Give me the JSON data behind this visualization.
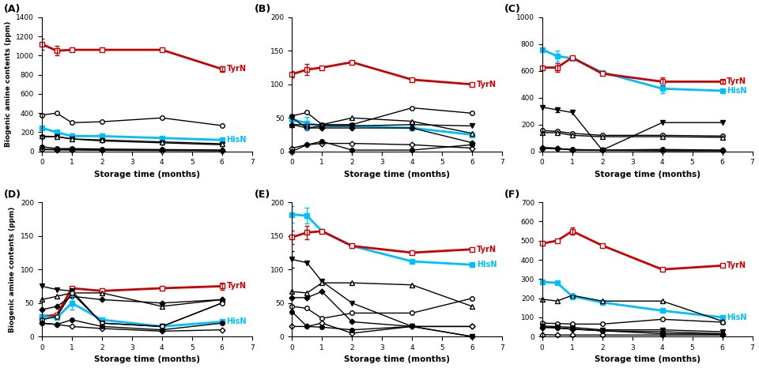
{
  "x_label": "Storage time (months)",
  "y_label": "Biogenic amine contents (ppm)",
  "panel_keys": [
    "A",
    "B",
    "C",
    "D",
    "E",
    "F"
  ],
  "panel_labels": [
    "(A)",
    "(B)",
    "(C)",
    "(D)",
    "(E)",
    "(F)"
  ],
  "label_colors": {
    "TyrN": "#CC0000",
    "HisN": "#00BFFF"
  },
  "panel_data": {
    "A": {
      "ylim": [
        0,
        1400
      ],
      "yticks": [
        0,
        200,
        400,
        600,
        800,
        1000,
        1200,
        1400
      ],
      "series": {
        "tyramine": {
          "x": [
            0,
            0.5,
            1,
            2,
            4,
            6
          ],
          "y": [
            1120,
            1050,
            1060,
            1060,
            1060,
            860
          ]
        },
        "histamine": {
          "x": [
            0,
            0.5,
            1,
            2,
            4,
            6
          ],
          "y": [
            245,
            200,
            160,
            160,
            140,
            120
          ]
        },
        "2-phenylethylamine": {
          "x": [
            0,
            0.5,
            1,
            2,
            4,
            6
          ],
          "y": [
            380,
            400,
            300,
            310,
            350,
            270
          ]
        },
        "putrescine": {
          "x": [
            0,
            0.5,
            1,
            2,
            4,
            6
          ],
          "y": [
            150,
            155,
            130,
            110,
            90,
            70
          ]
        },
        "cadaverine": {
          "x": [
            0,
            0.5,
            1,
            2,
            4,
            6
          ],
          "y": [
            160,
            155,
            130,
            120,
            100,
            80
          ]
        },
        "spermidine": {
          "x": [
            0,
            0.5,
            1,
            2,
            4,
            6
          ],
          "y": [
            25,
            20,
            20,
            15,
            15,
            10
          ]
        },
        "spermine": {
          "x": [
            0,
            0.5,
            1,
            2,
            4,
            6
          ],
          "y": [
            20,
            15,
            15,
            12,
            10,
            8
          ]
        },
        "tryptamine": {
          "x": [
            0,
            0.5,
            1,
            2,
            4,
            6
          ],
          "y": [
            50,
            30,
            30,
            25,
            20,
            15
          ]
        }
      },
      "label_pos": {
        "TyrN": [
          6.15,
          860
        ],
        "HisN": [
          6.15,
          120
        ]
      },
      "errorbars": {
        "tyramine": {
          "x": [
            0,
            0.5,
            6
          ],
          "yerr": [
            60,
            50,
            30
          ]
        },
        "histamine": {
          "x": [
            0
          ],
          "yerr": [
            25
          ]
        }
      }
    },
    "B": {
      "ylim": [
        0,
        200
      ],
      "yticks": [
        0,
        50,
        100,
        150,
        200
      ],
      "series": {
        "tyramine": {
          "x": [
            0,
            0.5,
            1,
            2,
            4,
            6
          ],
          "y": [
            115,
            122,
            125,
            133,
            107,
            100
          ]
        },
        "histamine": {
          "x": [
            0,
            0.5,
            1,
            2,
            4,
            6
          ],
          "y": [
            48,
            42,
            38,
            38,
            35,
            25
          ]
        },
        "2-phenylethylamine": {
          "x": [
            0,
            0.5,
            1,
            2,
            4,
            6
          ],
          "y": [
            53,
            58,
            40,
            40,
            65,
            57
          ]
        },
        "putrescine": {
          "x": [
            0,
            0.5,
            1,
            2,
            4,
            6
          ],
          "y": [
            50,
            35,
            38,
            38,
            40,
            38
          ]
        },
        "cadaverine": {
          "x": [
            0,
            0.5,
            1,
            2,
            4,
            6
          ],
          "y": [
            40,
            40,
            40,
            50,
            45,
            27
          ]
        },
        "spermidine": {
          "x": [
            0,
            0.5,
            1,
            2,
            4,
            6
          ],
          "y": [
            40,
            35,
            35,
            35,
            35,
            13
          ]
        },
        "spermine": {
          "x": [
            0,
            0.5,
            1,
            2,
            4,
            6
          ],
          "y": [
            5,
            10,
            12,
            12,
            10,
            5
          ]
        },
        "tryptamine": {
          "x": [
            0,
            0.5,
            1,
            2,
            4,
            6
          ],
          "y": [
            0,
            10,
            15,
            2,
            2,
            10
          ]
        }
      },
      "label_pos": {
        "TyrN": [
          6.15,
          100
        ]
      },
      "errorbars": {
        "tyramine": {
          "x": [
            0,
            0.5
          ],
          "yerr": [
            5,
            8
          ]
        },
        "histamine": {
          "x": [
            0.5
          ],
          "yerr": [
            10
          ]
        }
      }
    },
    "C": {
      "ylim": [
        0,
        1000
      ],
      "yticks": [
        0,
        200,
        400,
        600,
        800,
        1000
      ],
      "series": {
        "histamine": {
          "x": [
            0,
            0.5,
            1,
            2,
            4,
            6
          ],
          "y": [
            760,
            710,
            695,
            590,
            468,
            452
          ]
        },
        "tyramine": {
          "x": [
            0,
            0.5,
            1,
            2,
            4,
            6
          ],
          "y": [
            625,
            625,
            700,
            580,
            520,
            520
          ]
        },
        "putrescine": {
          "x": [
            0,
            0.5,
            1,
            2,
            4,
            6
          ],
          "y": [
            330,
            310,
            290,
            10,
            215,
            215
          ]
        },
        "2-phenylethylamine": {
          "x": [
            0,
            0.5,
            1,
            2,
            4,
            6
          ],
          "y": [
            155,
            150,
            135,
            120,
            120,
            115
          ]
        },
        "cadaverine": {
          "x": [
            0,
            0.5,
            1,
            2,
            4,
            6
          ],
          "y": [
            140,
            140,
            120,
            110,
            110,
            105
          ]
        },
        "spermidine": {
          "x": [
            0,
            0.5,
            1,
            2,
            4,
            6
          ],
          "y": [
            30,
            25,
            10,
            8,
            10,
            8
          ]
        },
        "spermine": {
          "x": [
            0,
            0.5,
            1,
            2,
            4,
            6
          ],
          "y": [
            25,
            20,
            12,
            8,
            5,
            5
          ]
        },
        "tryptamine": {
          "x": [
            0,
            0.5,
            1,
            2,
            4,
            6
          ],
          "y": [
            25,
            20,
            15,
            10,
            15,
            10
          ]
        }
      },
      "label_pos": {
        "TyrN": [
          6.15,
          520
        ],
        "HisN": [
          6.15,
          452
        ]
      },
      "errorbars": {
        "tyramine": {
          "x": [
            0.5,
            4,
            6
          ],
          "yerr": [
            30,
            30,
            15
          ]
        },
        "histamine": {
          "x": [
            0.5,
            4
          ],
          "yerr": [
            40,
            35
          ]
        },
        "putrescine": {
          "x": [
            0.5
          ],
          "yerr": [
            20
          ]
        }
      }
    },
    "D": {
      "ylim": [
        0,
        200
      ],
      "yticks": [
        0,
        50,
        100,
        150,
        200
      ],
      "series": {
        "tyramine": {
          "x": [
            0,
            0.5,
            1,
            2,
            4,
            6
          ],
          "y": [
            30,
            32,
            72,
            68,
            72,
            75
          ]
        },
        "histamine": {
          "x": [
            0,
            0.5,
            1,
            2,
            4,
            6
          ],
          "y": [
            30,
            28,
            50,
            25,
            15,
            22
          ]
        },
        "putrescine": {
          "x": [
            0,
            0.5,
            1,
            2,
            4,
            6
          ],
          "y": [
            75,
            70,
            68,
            20,
            15,
            50
          ]
        },
        "cadaverine": {
          "x": [
            0,
            0.5,
            1,
            2,
            4,
            6
          ],
          "y": [
            55,
            60,
            65,
            65,
            45,
            55
          ]
        },
        "spermidine": {
          "x": [
            0,
            0.5,
            1,
            2,
            4,
            6
          ],
          "y": [
            40,
            45,
            60,
            55,
            50,
            55
          ]
        },
        "2-phenylethylamine": {
          "x": [
            0,
            0.5,
            1,
            2,
            4,
            6
          ],
          "y": [
            25,
            30,
            65,
            20,
            15,
            50
          ]
        },
        "spermine": {
          "x": [
            0,
            0.5,
            1,
            2,
            4,
            6
          ],
          "y": [
            20,
            18,
            15,
            12,
            8,
            10
          ]
        },
        "tryptamine": {
          "x": [
            0,
            0.5,
            1,
            2,
            4,
            6
          ],
          "y": [
            20,
            18,
            25,
            15,
            10,
            20
          ]
        }
      },
      "label_pos": {
        "TyrN": [
          6.15,
          75
        ],
        "HisN": [
          6.15,
          22
        ]
      },
      "errorbars": {
        "tyramine": {
          "x": [
            6
          ],
          "yerr": [
            5
          ]
        },
        "histamine": {
          "x": [
            1
          ],
          "yerr": [
            10
          ]
        }
      }
    },
    "E": {
      "ylim": [
        0,
        200
      ],
      "yticks": [
        0,
        50,
        100,
        150,
        200
      ],
      "series": {
        "histamine": {
          "x": [
            0,
            0.5,
            1,
            2,
            4,
            6
          ],
          "y": [
            182,
            180,
            157,
            135,
            112,
            107
          ]
        },
        "tyramine": {
          "x": [
            0,
            0.5,
            1,
            2,
            4,
            6
          ],
          "y": [
            148,
            155,
            157,
            135,
            125,
            130
          ]
        },
        "putrescine": {
          "x": [
            0,
            0.5,
            1,
            2,
            4,
            6
          ],
          "y": [
            115,
            110,
            82,
            50,
            15,
            0
          ]
        },
        "cadaverine": {
          "x": [
            0,
            0.5,
            1,
            2,
            4,
            6
          ],
          "y": [
            67,
            65,
            80,
            80,
            77,
            45
          ]
        },
        "2-phenylethylamine": {
          "x": [
            0,
            0.5,
            1,
            2,
            4,
            6
          ],
          "y": [
            45,
            42,
            27,
            35,
            35,
            57
          ]
        },
        "spermidine": {
          "x": [
            0,
            0.5,
            1,
            2,
            4,
            6
          ],
          "y": [
            58,
            58,
            67,
            22,
            15,
            15
          ]
        },
        "spermine": {
          "x": [
            0,
            0.5,
            1,
            2,
            4,
            6
          ],
          "y": [
            15,
            15,
            20,
            5,
            15,
            15
          ]
        },
        "tryptamine": {
          "x": [
            0,
            0.5,
            1,
            2,
            4,
            6
          ],
          "y": [
            37,
            15,
            14,
            10,
            15,
            0
          ]
        }
      },
      "label_pos": {
        "TyrN": [
          6.15,
          130
        ],
        "HisN": [
          6.15,
          107
        ]
      },
      "errorbars": {
        "tyramine": {
          "x": [
            0,
            0.5
          ],
          "yerr": [
            10,
            10
          ]
        },
        "histamine": {
          "x": [
            0,
            0.5
          ],
          "yerr": [
            12,
            12
          ]
        },
        "putrescine": {
          "x": [
            0
          ],
          "yerr": [
            12
          ]
        }
      }
    },
    "F": {
      "ylim": [
        0,
        700
      ],
      "yticks": [
        0,
        100,
        200,
        300,
        400,
        500,
        600,
        700
      ],
      "series": {
        "tyramine": {
          "x": [
            0,
            0.5,
            1,
            2,
            4,
            6
          ],
          "y": [
            485,
            500,
            550,
            475,
            350,
            370
          ]
        },
        "histamine": {
          "x": [
            0,
            0.5,
            1,
            2,
            4,
            6
          ],
          "y": [
            285,
            280,
            210,
            178,
            135,
            100
          ]
        },
        "cadaverine": {
          "x": [
            0,
            0.5,
            1,
            2,
            4,
            6
          ],
          "y": [
            195,
            185,
            215,
            185,
            185,
            80
          ]
        },
        "2-phenylethylamine": {
          "x": [
            0,
            0.5,
            1,
            2,
            4,
            6
          ],
          "y": [
            70,
            68,
            65,
            65,
            90,
            75
          ]
        },
        "putrescine": {
          "x": [
            0,
            0.5,
            1,
            2,
            4,
            6
          ],
          "y": [
            55,
            52,
            48,
            35,
            35,
            25
          ]
        },
        "spermidine": {
          "x": [
            0,
            0.5,
            1,
            2,
            4,
            6
          ],
          "y": [
            48,
            45,
            38,
            30,
            25,
            15
          ]
        },
        "spermine": {
          "x": [
            0,
            0.5,
            1,
            2,
            4,
            6
          ],
          "y": [
            10,
            8,
            8,
            8,
            8,
            8
          ]
        },
        "tryptamine": {
          "x": [
            0,
            0.5,
            1,
            2,
            4,
            6
          ],
          "y": [
            50,
            45,
            40,
            30,
            15,
            12
          ]
        }
      },
      "label_pos": {
        "TyrN": [
          6.15,
          370
        ],
        "HisN": [
          6.15,
          100
        ]
      },
      "errorbars": {
        "tyramine": {
          "x": [
            1
          ],
          "yerr": [
            20
          ]
        },
        "histamine": {
          "x": [
            1
          ],
          "yerr": [
            15
          ]
        }
      }
    }
  }
}
